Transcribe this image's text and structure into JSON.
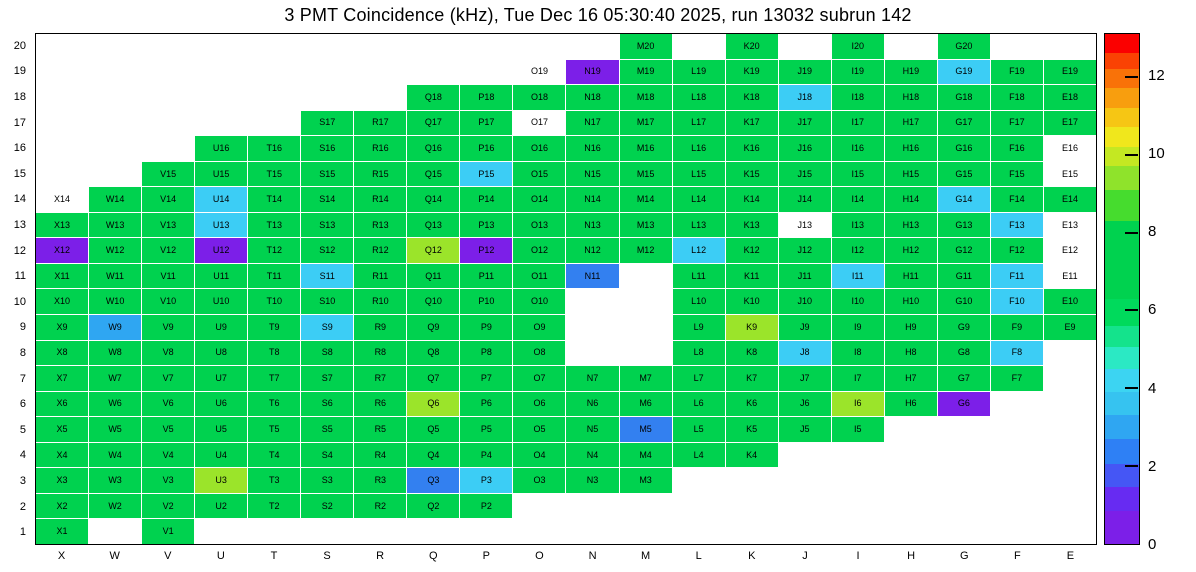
{
  "title": "3 PMT Coincidence (kHz), Tue Dec 16 05:30:40 2025, run 13032 subrun 142",
  "chart_data": {
    "type": "heatmap",
    "title": "3 PMT Coincidence (kHz), Tue Dec 16 05:30:40 2025, run 13032 subrun 142",
    "units": "kHz",
    "run": "13032",
    "subrun": "142",
    "timestamp": "Tue Dec 16 05:30:40 2025",
    "columns": [
      "X",
      "W",
      "V",
      "U",
      "T",
      "S",
      "R",
      "Q",
      "P",
      "O",
      "N",
      "M",
      "L",
      "K",
      "J",
      "I",
      "H",
      "G",
      "F",
      "E"
    ],
    "rows": [
      20,
      19,
      18,
      17,
      16,
      15,
      14,
      13,
      12,
      11,
      10,
      9,
      8,
      7,
      6,
      5,
      4,
      3,
      2,
      1
    ],
    "class_colors": {
      "g": "#00D24F",
      "y": "#9BE42A",
      "c": "#3CCDF5",
      "s": "#2FA6F2",
      "b": "#3380F0",
      "v": "#7C1FE8",
      "w": "#FFFFFF"
    },
    "class_value_estimates_kHz": {
      "g": 7.0,
      "y": 9.4,
      "c": 4.3,
      "s": 3.2,
      "b": 2.5,
      "v": 0.6,
      "w": null
    },
    "cells": {
      "20": [
        [
          "M20",
          "g"
        ],
        [
          "K20",
          "g"
        ],
        [
          "I20",
          "g"
        ],
        [
          "G20",
          "g"
        ]
      ],
      "19": [
        [
          "O19",
          "w"
        ],
        [
          "N19",
          "v"
        ],
        [
          "M19",
          "g"
        ],
        [
          "L19",
          "g"
        ],
        [
          "K19",
          "g"
        ],
        [
          "J19",
          "g"
        ],
        [
          "I19",
          "g"
        ],
        [
          "H19",
          "g"
        ],
        [
          "G19",
          "c"
        ],
        [
          "F19",
          "g"
        ],
        [
          "E19",
          "g"
        ]
      ],
      "18": [
        [
          "Q18",
          "g"
        ],
        [
          "P18",
          "g"
        ],
        [
          "O18",
          "g"
        ],
        [
          "N18",
          "g"
        ],
        [
          "M18",
          "g"
        ],
        [
          "L18",
          "g"
        ],
        [
          "K18",
          "g"
        ],
        [
          "J18",
          "c"
        ],
        [
          "I18",
          "g"
        ],
        [
          "H18",
          "g"
        ],
        [
          "G18",
          "g"
        ],
        [
          "F18",
          "g"
        ],
        [
          "E18",
          "g"
        ]
      ],
      "17": [
        [
          "S17",
          "g"
        ],
        [
          "R17",
          "g"
        ],
        [
          "Q17",
          "g"
        ],
        [
          "P17",
          "g"
        ],
        [
          "O17",
          "w"
        ],
        [
          "N17",
          "g"
        ],
        [
          "M17",
          "g"
        ],
        [
          "L17",
          "g"
        ],
        [
          "K17",
          "g"
        ],
        [
          "J17",
          "g"
        ],
        [
          "I17",
          "g"
        ],
        [
          "H17",
          "g"
        ],
        [
          "G17",
          "g"
        ],
        [
          "F17",
          "g"
        ],
        [
          "E17",
          "g"
        ]
      ],
      "16": [
        [
          "U16",
          "g"
        ],
        [
          "T16",
          "g"
        ],
        [
          "S16",
          "g"
        ],
        [
          "R16",
          "g"
        ],
        [
          "Q16",
          "g"
        ],
        [
          "P16",
          "g"
        ],
        [
          "O16",
          "g"
        ],
        [
          "N16",
          "g"
        ],
        [
          "M16",
          "g"
        ],
        [
          "L16",
          "g"
        ],
        [
          "K16",
          "g"
        ],
        [
          "J16",
          "g"
        ],
        [
          "I16",
          "g"
        ],
        [
          "H16",
          "g"
        ],
        [
          "G16",
          "g"
        ],
        [
          "F16",
          "g"
        ],
        [
          "E16",
          "w"
        ]
      ],
      "15": [
        [
          "V15",
          "g"
        ],
        [
          "U15",
          "g"
        ],
        [
          "T15",
          "g"
        ],
        [
          "S15",
          "g"
        ],
        [
          "R15",
          "g"
        ],
        [
          "Q15",
          "g"
        ],
        [
          "P15",
          "c"
        ],
        [
          "O15",
          "g"
        ],
        [
          "N15",
          "g"
        ],
        [
          "M15",
          "g"
        ],
        [
          "L15",
          "g"
        ],
        [
          "K15",
          "g"
        ],
        [
          "J15",
          "g"
        ],
        [
          "I15",
          "g"
        ],
        [
          "H15",
          "g"
        ],
        [
          "G15",
          "g"
        ],
        [
          "F15",
          "g"
        ],
        [
          "E15",
          "w"
        ]
      ],
      "14": [
        [
          "X14",
          "w"
        ],
        [
          "W14",
          "g"
        ],
        [
          "V14",
          "g"
        ],
        [
          "U14",
          "c"
        ],
        [
          "T14",
          "g"
        ],
        [
          "S14",
          "g"
        ],
        [
          "R14",
          "g"
        ],
        [
          "Q14",
          "g"
        ],
        [
          "P14",
          "g"
        ],
        [
          "O14",
          "g"
        ],
        [
          "N14",
          "g"
        ],
        [
          "M14",
          "g"
        ],
        [
          "L14",
          "g"
        ],
        [
          "K14",
          "g"
        ],
        [
          "J14",
          "g"
        ],
        [
          "I14",
          "g"
        ],
        [
          "H14",
          "g"
        ],
        [
          "G14",
          "c"
        ],
        [
          "F14",
          "g"
        ],
        [
          "E14",
          "g"
        ]
      ],
      "13": [
        [
          "X13",
          "g"
        ],
        [
          "W13",
          "g"
        ],
        [
          "V13",
          "g"
        ],
        [
          "U13",
          "c"
        ],
        [
          "T13",
          "g"
        ],
        [
          "S13",
          "g"
        ],
        [
          "R13",
          "g"
        ],
        [
          "Q13",
          "g"
        ],
        [
          "P13",
          "g"
        ],
        [
          "O13",
          "g"
        ],
        [
          "N13",
          "g"
        ],
        [
          "M13",
          "g"
        ],
        [
          "L13",
          "g"
        ],
        [
          "K13",
          "g"
        ],
        [
          "J13",
          "w"
        ],
        [
          "I13",
          "g"
        ],
        [
          "H13",
          "g"
        ],
        [
          "G13",
          "g"
        ],
        [
          "F13",
          "c"
        ],
        [
          "E13",
          "w"
        ]
      ],
      "12": [
        [
          "X12",
          "v"
        ],
        [
          "W12",
          "g"
        ],
        [
          "V12",
          "g"
        ],
        [
          "U12",
          "v"
        ],
        [
          "T12",
          "g"
        ],
        [
          "S12",
          "g"
        ],
        [
          "R12",
          "g"
        ],
        [
          "Q12",
          "y"
        ],
        [
          "P12",
          "v"
        ],
        [
          "O12",
          "g"
        ],
        [
          "N12",
          "g"
        ],
        [
          "M12",
          "g"
        ],
        [
          "L12",
          "c"
        ],
        [
          "K12",
          "g"
        ],
        [
          "J12",
          "g"
        ],
        [
          "I12",
          "g"
        ],
        [
          "H12",
          "g"
        ],
        [
          "G12",
          "g"
        ],
        [
          "F12",
          "g"
        ],
        [
          "E12",
          "w"
        ]
      ],
      "11": [
        [
          "X11",
          "g"
        ],
        [
          "W11",
          "g"
        ],
        [
          "V11",
          "g"
        ],
        [
          "U11",
          "g"
        ],
        [
          "T11",
          "g"
        ],
        [
          "S11",
          "c"
        ],
        [
          "R11",
          "g"
        ],
        [
          "Q11",
          "g"
        ],
        [
          "P11",
          "g"
        ],
        [
          "O11",
          "g"
        ],
        [
          "N11",
          "b"
        ],
        [
          "L11",
          "g"
        ],
        [
          "K11",
          "g"
        ],
        [
          "J11",
          "g"
        ],
        [
          "I11",
          "c"
        ],
        [
          "H11",
          "g"
        ],
        [
          "G11",
          "g"
        ],
        [
          "F11",
          "c"
        ],
        [
          "E11",
          "w"
        ]
      ],
      "10": [
        [
          "X10",
          "g"
        ],
        [
          "W10",
          "g"
        ],
        [
          "V10",
          "g"
        ],
        [
          "U10",
          "g"
        ],
        [
          "T10",
          "g"
        ],
        [
          "S10",
          "g"
        ],
        [
          "R10",
          "g"
        ],
        [
          "Q10",
          "g"
        ],
        [
          "P10",
          "g"
        ],
        [
          "O10",
          "g"
        ],
        [
          "L10",
          "g"
        ],
        [
          "K10",
          "g"
        ],
        [
          "J10",
          "g"
        ],
        [
          "I10",
          "g"
        ],
        [
          "H10",
          "g"
        ],
        [
          "G10",
          "g"
        ],
        [
          "F10",
          "c"
        ],
        [
          "E10",
          "g"
        ]
      ],
      "9": [
        [
          "X9",
          "g"
        ],
        [
          "W9",
          "s"
        ],
        [
          "V9",
          "g"
        ],
        [
          "U9",
          "g"
        ],
        [
          "T9",
          "g"
        ],
        [
          "S9",
          "c"
        ],
        [
          "R9",
          "g"
        ],
        [
          "Q9",
          "g"
        ],
        [
          "P9",
          "g"
        ],
        [
          "O9",
          "g"
        ],
        [
          "L9",
          "g"
        ],
        [
          "K9",
          "y"
        ],
        [
          "J9",
          "g"
        ],
        [
          "I9",
          "g"
        ],
        [
          "H9",
          "g"
        ],
        [
          "G9",
          "g"
        ],
        [
          "F9",
          "g"
        ],
        [
          "E9",
          "g"
        ]
      ],
      "8": [
        [
          "X8",
          "g"
        ],
        [
          "W8",
          "g"
        ],
        [
          "V8",
          "g"
        ],
        [
          "U8",
          "g"
        ],
        [
          "T8",
          "g"
        ],
        [
          "S8",
          "g"
        ],
        [
          "R8",
          "g"
        ],
        [
          "Q8",
          "g"
        ],
        [
          "P8",
          "g"
        ],
        [
          "O8",
          "g"
        ],
        [
          "L8",
          "g"
        ],
        [
          "K8",
          "g"
        ],
        [
          "J8",
          "c"
        ],
        [
          "I8",
          "g"
        ],
        [
          "H8",
          "g"
        ],
        [
          "G8",
          "g"
        ],
        [
          "F8",
          "c"
        ]
      ],
      "7": [
        [
          "X7",
          "g"
        ],
        [
          "W7",
          "g"
        ],
        [
          "V7",
          "g"
        ],
        [
          "U7",
          "g"
        ],
        [
          "T7",
          "g"
        ],
        [
          "S7",
          "g"
        ],
        [
          "R7",
          "g"
        ],
        [
          "Q7",
          "g"
        ],
        [
          "P7",
          "g"
        ],
        [
          "O7",
          "g"
        ],
        [
          "N7",
          "g"
        ],
        [
          "M7",
          "g"
        ],
        [
          "L7",
          "g"
        ],
        [
          "K7",
          "g"
        ],
        [
          "J7",
          "g"
        ],
        [
          "I7",
          "g"
        ],
        [
          "H7",
          "g"
        ],
        [
          "G7",
          "g"
        ],
        [
          "F7",
          "g"
        ]
      ],
      "6": [
        [
          "X6",
          "g"
        ],
        [
          "W6",
          "g"
        ],
        [
          "V6",
          "g"
        ],
        [
          "U6",
          "g"
        ],
        [
          "T6",
          "g"
        ],
        [
          "S6",
          "g"
        ],
        [
          "R6",
          "g"
        ],
        [
          "Q6",
          "y"
        ],
        [
          "P6",
          "g"
        ],
        [
          "O6",
          "g"
        ],
        [
          "N6",
          "g"
        ],
        [
          "M6",
          "g"
        ],
        [
          "L6",
          "g"
        ],
        [
          "K6",
          "g"
        ],
        [
          "J6",
          "g"
        ],
        [
          "I6",
          "y"
        ],
        [
          "H6",
          "g"
        ],
        [
          "G6",
          "v"
        ]
      ],
      "5": [
        [
          "X5",
          "g"
        ],
        [
          "W5",
          "g"
        ],
        [
          "V5",
          "g"
        ],
        [
          "U5",
          "g"
        ],
        [
          "T5",
          "g"
        ],
        [
          "S5",
          "g"
        ],
        [
          "R5",
          "g"
        ],
        [
          "Q5",
          "g"
        ],
        [
          "P5",
          "g"
        ],
        [
          "O5",
          "g"
        ],
        [
          "N5",
          "g"
        ],
        [
          "M5",
          "b"
        ],
        [
          "L5",
          "g"
        ],
        [
          "K5",
          "g"
        ],
        [
          "J5",
          "g"
        ],
        [
          "I5",
          "g"
        ]
      ],
      "4": [
        [
          "X4",
          "g"
        ],
        [
          "W4",
          "g"
        ],
        [
          "V4",
          "g"
        ],
        [
          "U4",
          "g"
        ],
        [
          "T4",
          "g"
        ],
        [
          "S4",
          "g"
        ],
        [
          "R4",
          "g"
        ],
        [
          "Q4",
          "g"
        ],
        [
          "P4",
          "g"
        ],
        [
          "O4",
          "g"
        ],
        [
          "N4",
          "g"
        ],
        [
          "M4",
          "g"
        ],
        [
          "L4",
          "g"
        ],
        [
          "K4",
          "g"
        ]
      ],
      "3": [
        [
          "X3",
          "g"
        ],
        [
          "W3",
          "g"
        ],
        [
          "V3",
          "g"
        ],
        [
          "U3",
          "y"
        ],
        [
          "T3",
          "g"
        ],
        [
          "S3",
          "g"
        ],
        [
          "R3",
          "g"
        ],
        [
          "Q3",
          "b"
        ],
        [
          "P3",
          "c"
        ],
        [
          "O3",
          "g"
        ],
        [
          "N3",
          "g"
        ],
        [
          "M3",
          "g"
        ]
      ],
      "2": [
        [
          "X2",
          "g"
        ],
        [
          "W2",
          "g"
        ],
        [
          "V2",
          "g"
        ],
        [
          "U2",
          "g"
        ],
        [
          "T2",
          "g"
        ],
        [
          "S2",
          "g"
        ],
        [
          "R2",
          "g"
        ],
        [
          "Q2",
          "g"
        ],
        [
          "P2",
          "g"
        ]
      ],
      "1": [
        [
          "X1",
          "g"
        ],
        [
          "V1",
          "g"
        ]
      ]
    },
    "colorbar": {
      "min": 0,
      "max": 13.1,
      "ticks": [
        12,
        10,
        8,
        6,
        4,
        2,
        0
      ],
      "position": "right",
      "segments": [
        {
          "color": "#7C1FE8",
          "from": 0,
          "to": 0.85
        },
        {
          "color": "#672BF2",
          "from": 0.85,
          "to": 1.45
        },
        {
          "color": "#4556F5",
          "from": 1.45,
          "to": 2.05
        },
        {
          "color": "#2E80F5",
          "from": 2.05,
          "to": 2.7
        },
        {
          "color": "#2FA6F2",
          "from": 2.7,
          "to": 3.3
        },
        {
          "color": "#36C3F0",
          "from": 3.3,
          "to": 3.9
        },
        {
          "color": "#3CD4F2",
          "from": 3.9,
          "to": 4.5
        },
        {
          "color": "#2BE9C4",
          "from": 4.5,
          "to": 5.05
        },
        {
          "color": "#14E38C",
          "from": 5.05,
          "to": 5.6
        },
        {
          "color": "#00DA5C",
          "from": 5.6,
          "to": 6.3
        },
        {
          "color": "#00D24F",
          "from": 6.3,
          "to": 8.3
        },
        {
          "color": "#46DC2E",
          "from": 8.3,
          "to": 9.1
        },
        {
          "color": "#8FE32B",
          "from": 9.1,
          "to": 9.7
        },
        {
          "color": "#C4E822",
          "from": 9.7,
          "to": 10.2
        },
        {
          "color": "#F0E71C",
          "from": 10.2,
          "to": 10.7
        },
        {
          "color": "#F6C614",
          "from": 10.7,
          "to": 11.2
        },
        {
          "color": "#F89E0E",
          "from": 11.2,
          "to": 11.7
        },
        {
          "color": "#F97208",
          "from": 11.7,
          "to": 12.2
        },
        {
          "color": "#FA4203",
          "from": 12.2,
          "to": 12.6
        },
        {
          "color": "#FB0000",
          "from": 12.6,
          "to": 13.1
        }
      ]
    },
    "grid": false,
    "legend": false
  }
}
